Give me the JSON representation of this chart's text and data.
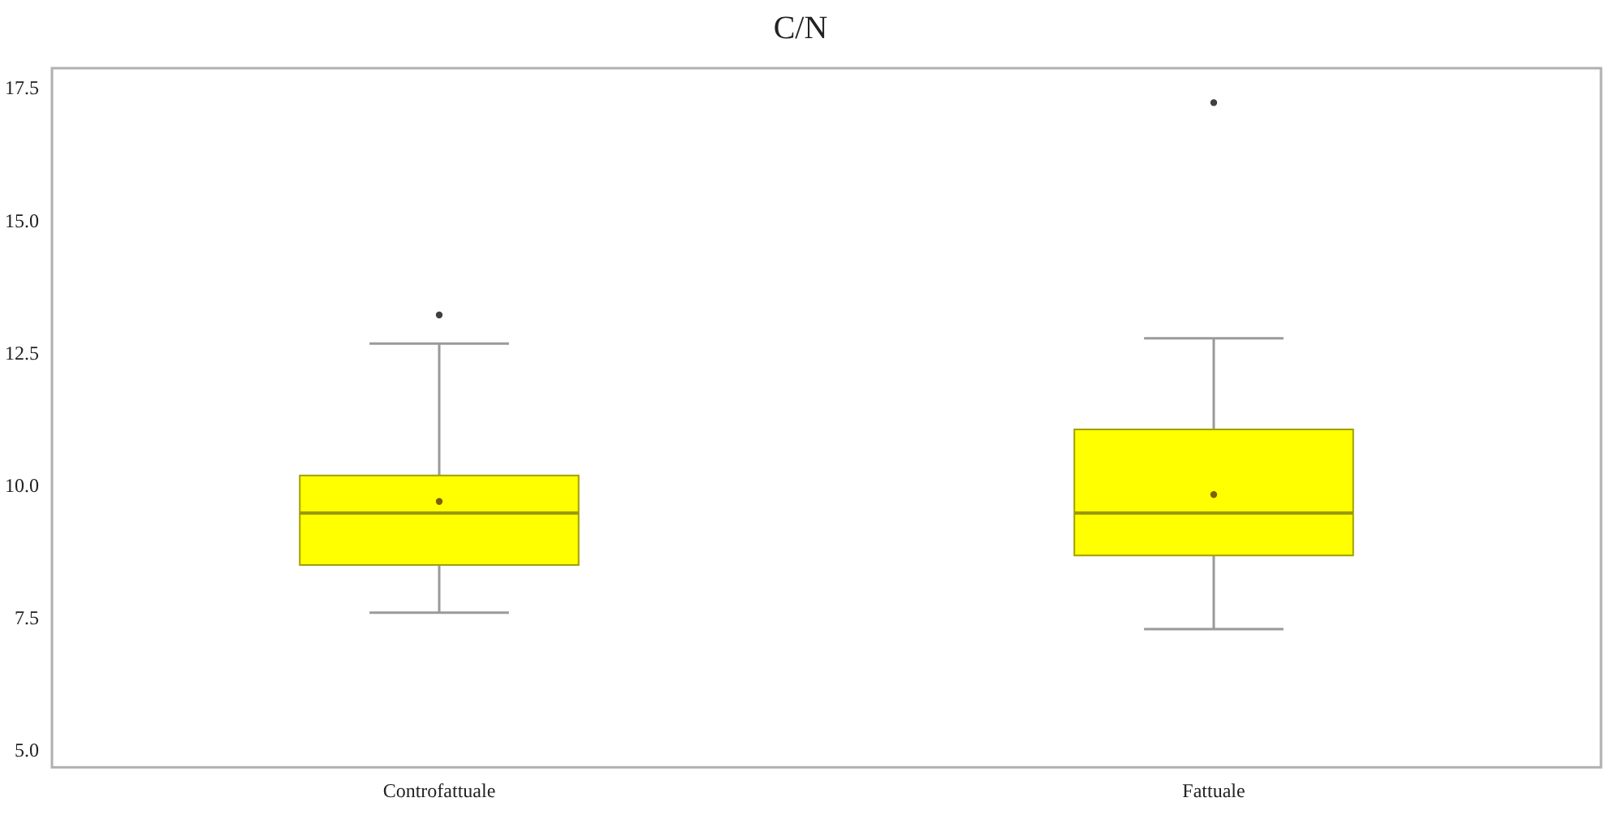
{
  "chart_data": {
    "type": "box",
    "title": "C/N",
    "categories": [
      "Controfattuale",
      "Fattuale"
    ],
    "boxes": [
      {
        "low": 7.62,
        "q1": 8.52,
        "median": 9.5,
        "q3": 10.21,
        "high": 12.7,
        "mean": 9.72,
        "outliers": [
          13.24
        ]
      },
      {
        "low": 7.31,
        "q1": 8.7,
        "median": 9.5,
        "q3": 11.08,
        "high": 12.8,
        "mean": 9.85,
        "outliers": [
          17.25
        ]
      }
    ],
    "color": "#ffff00",
    "ylim": [
      4.7,
      17.9
    ],
    "yticks": [
      {
        "value": 5,
        "label": "5.0"
      },
      {
        "value": 7.5,
        "label": "7.5"
      },
      {
        "value": 10,
        "label": "10.0"
      },
      {
        "value": 12.5,
        "label": "12.5"
      },
      {
        "value": 15,
        "label": "15.0"
      },
      {
        "value": 17.5,
        "label": "17.5"
      }
    ],
    "grid": false,
    "legend": false,
    "marker": "circle"
  }
}
